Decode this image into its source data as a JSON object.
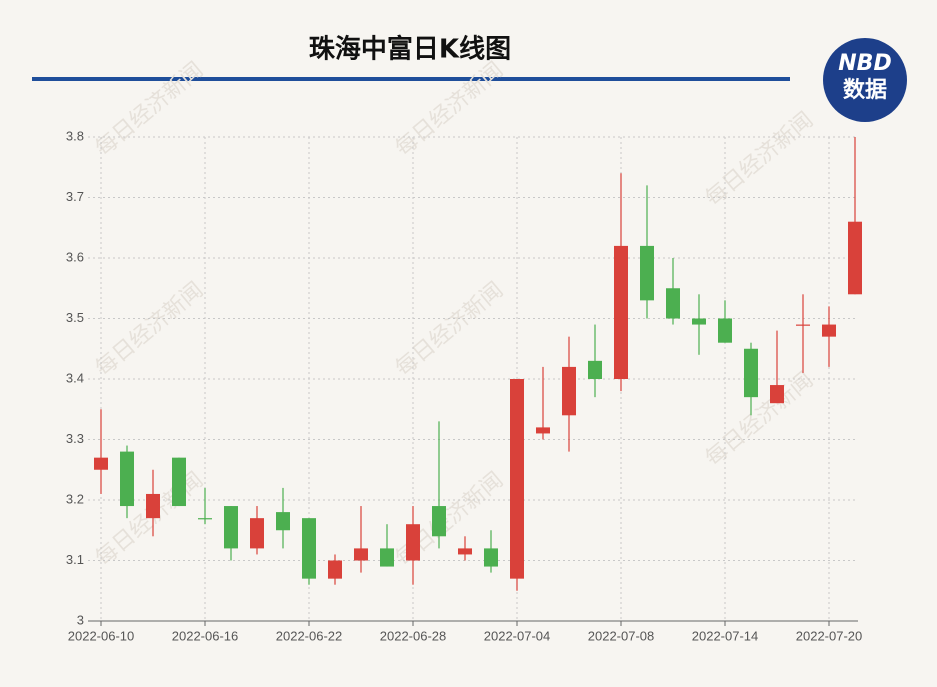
{
  "chart_data": {
    "type": "candlestick",
    "title": "珠海中富日K线图",
    "logo": {
      "top": "NBD",
      "bottom": "数据"
    },
    "watermark": "每日经济新闻",
    "categories": [
      "2022-06-10",
      null,
      null,
      null,
      "2022-06-16",
      null,
      null,
      null,
      "2022-06-22",
      null,
      null,
      null,
      "2022-06-28",
      null,
      null,
      null,
      "2022-07-04",
      null,
      null,
      null,
      "2022-07-08",
      null,
      null,
      null,
      "2022-07-14",
      null,
      null,
      null,
      "2022-07-20",
      null
    ],
    "open": [
      3.25,
      3.28,
      3.17,
      3.27,
      3.17,
      3.19,
      3.12,
      3.18,
      3.17,
      3.07,
      3.1,
      3.12,
      3.1,
      3.19,
      3.11,
      3.12,
      3.07,
      3.31,
      3.34,
      3.43,
      3.4,
      3.62,
      3.55,
      3.5,
      3.5,
      3.45,
      3.36,
      3.49,
      3.47,
      3.54
    ],
    "high": [
      3.35,
      3.29,
      3.25,
      3.27,
      3.22,
      3.19,
      3.19,
      3.22,
      3.17,
      3.11,
      3.19,
      3.16,
      3.19,
      3.33,
      3.14,
      3.15,
      3.4,
      3.42,
      3.47,
      3.49,
      3.74,
      3.72,
      3.6,
      3.54,
      3.53,
      3.46,
      3.48,
      3.54,
      3.52,
      3.8
    ],
    "low": [
      3.21,
      3.17,
      3.14,
      3.19,
      3.16,
      3.1,
      3.11,
      3.12,
      3.06,
      3.06,
      3.08,
      3.09,
      3.06,
      3.12,
      3.1,
      3.08,
      3.05,
      3.3,
      3.28,
      3.37,
      3.38,
      3.5,
      3.49,
      3.44,
      3.46,
      3.34,
      3.36,
      3.41,
      3.42,
      3.54
    ],
    "close": [
      3.27,
      3.19,
      3.21,
      3.19,
      3.17,
      3.12,
      3.17,
      3.15,
      3.07,
      3.1,
      3.12,
      3.09,
      3.16,
      3.14,
      3.12,
      3.09,
      3.4,
      3.32,
      3.42,
      3.4,
      3.62,
      3.53,
      3.5,
      3.49,
      3.46,
      3.37,
      3.39,
      3.49,
      3.49,
      3.66
    ],
    "up_color": "#d9413a",
    "down_color": "#4caf50",
    "ylim": [
      3,
      3.8
    ],
    "yticks": [
      3,
      3.1,
      3.2,
      3.3,
      3.4,
      3.5,
      3.6,
      3.7,
      3.8
    ],
    "grid": true
  }
}
